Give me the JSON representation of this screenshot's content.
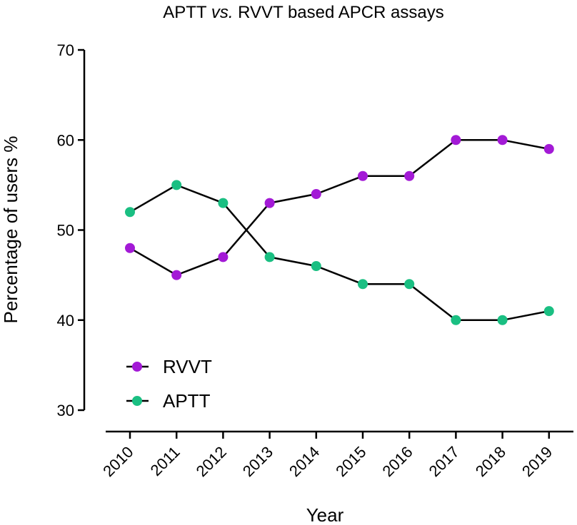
{
  "chart_data": {
    "type": "line",
    "title_prefix": "APTT ",
    "title_italic": "vs.",
    "title_suffix": " RVVT based APCR assays",
    "xlabel": "Year",
    "ylabel": "Percentage of users %",
    "x": [
      "2010",
      "2011",
      "2012",
      "2013",
      "2014",
      "2015",
      "2016",
      "2017",
      "2018",
      "2019"
    ],
    "ylim": [
      30,
      70
    ],
    "yticks": [
      30,
      40,
      50,
      60,
      70
    ],
    "grid": false,
    "legend_position": "bottom-left",
    "series": [
      {
        "name": "RVVT",
        "color": "#a31ad6",
        "values": [
          48,
          45,
          47,
          53,
          54,
          56,
          56,
          60,
          60,
          59
        ]
      },
      {
        "name": "APTT",
        "color": "#1abf82",
        "values": [
          52,
          55,
          53,
          47,
          46,
          44,
          44,
          40,
          40,
          41
        ]
      }
    ]
  }
}
